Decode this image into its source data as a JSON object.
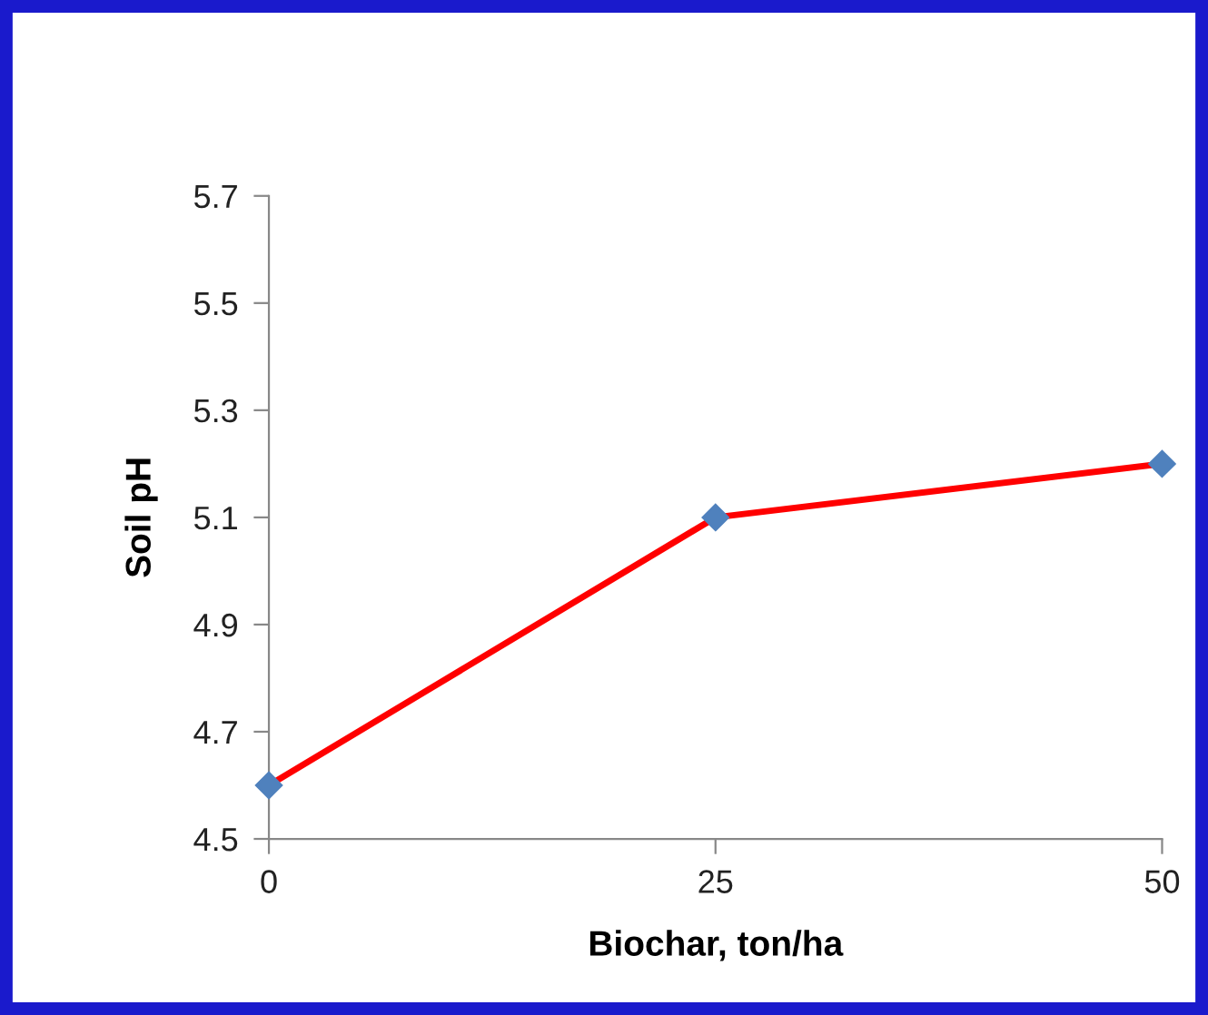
{
  "chart_data": {
    "type": "line",
    "xlabel": "Biochar, ton/ha",
    "ylabel": "Soil pH",
    "x": [
      0,
      25,
      50
    ],
    "series": [
      {
        "color": "#ff0000",
        "values": [
          4.6,
          5.1,
          5.2
        ]
      }
    ],
    "marker": "diamond",
    "line_style": "solid",
    "xlim": [
      0,
      50
    ],
    "xticks": [
      0,
      25,
      50
    ],
    "ylim": [
      4.5,
      5.7
    ],
    "yticks": [
      4.5,
      4.7,
      4.9,
      5.1,
      5.3,
      5.5,
      5.7
    ],
    "grid": false,
    "legend": false
  }
}
